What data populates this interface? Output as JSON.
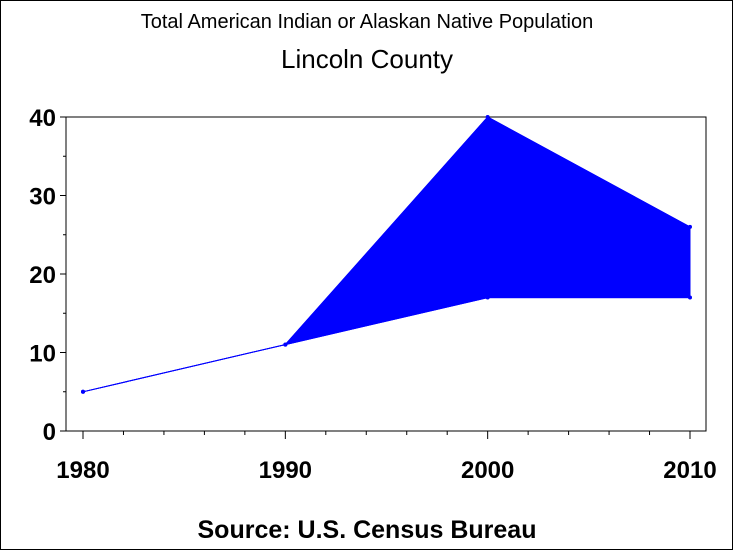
{
  "chart_data": {
    "type": "area",
    "title": "Total American Indian or Alaskan Native Population",
    "subtitle": "Lincoln County",
    "footnote": "Source: U.S. Census Bureau",
    "x": [
      1980,
      1990,
      2000,
      2010
    ],
    "series": [
      {
        "values": [
          5,
          11,
          17,
          17
        ]
      },
      {
        "values": [
          5,
          11,
          40,
          26
        ]
      }
    ],
    "xlim": [
      1980,
      2010
    ],
    "ylim": [
      0,
      40
    ],
    "x_ticks": [
      "1980",
      "1990",
      "2000",
      "2010"
    ],
    "y_ticks": [
      "0",
      "10",
      "20",
      "30",
      "40"
    ],
    "grid": false,
    "colors": {
      "fill": "#0000ff",
      "line": "#0000ff",
      "axis": "#000000"
    }
  }
}
